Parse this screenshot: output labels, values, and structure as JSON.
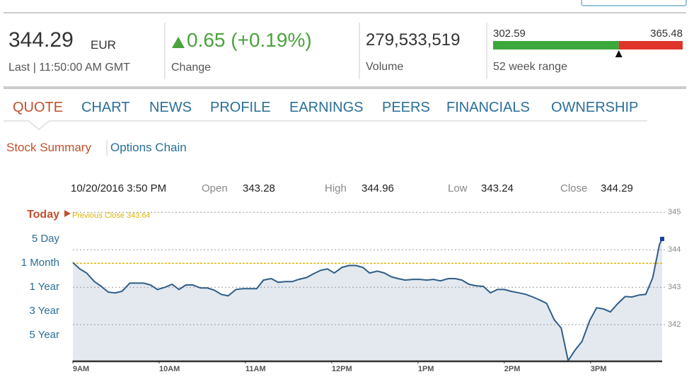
{
  "header": {
    "price": 344.29,
    "currency": "EUR",
    "last_label": "Last",
    "last_time": "11:50:00 AM GMT",
    "change": "0.65 (+0.19%)",
    "change_label": "Change",
    "volume": "279,533,519",
    "volume_label": "Volume",
    "range_low": 302.59,
    "range_high": 365.48,
    "range_label": "52 week range"
  },
  "tabs": [
    "QUOTE",
    "CHART",
    "NEWS",
    "PROFILE",
    "EARNINGS",
    "PEERS",
    "FINANCIALS",
    "OWNERSHIP"
  ],
  "subtabs": [
    "Stock Summary",
    "Options Chain"
  ],
  "quote_info": {
    "date": "10/20/2016 3:50 PM",
    "fields": [
      {
        "label": "Open",
        "value": "343.28"
      },
      {
        "label": "High",
        "value": "344.96"
      },
      {
        "label": "Low",
        "value": "343.24"
      },
      {
        "label": "Close",
        "value": "344.29"
      }
    ]
  },
  "ranges": [
    "Today",
    "5 Day",
    "1 Month",
    "1 Year",
    "3 Year",
    "5 Year"
  ],
  "chart_data": {
    "type": "line",
    "color": "#2f5d87",
    "x": [
      9.0,
      9.08,
      9.16,
      9.25,
      9.33,
      9.41,
      9.49,
      9.57,
      9.66,
      9.74,
      9.82,
      9.9,
      9.98,
      10.07,
      10.15,
      10.23,
      10.31,
      10.39,
      10.48,
      10.56,
      10.64,
      10.72,
      10.8,
      10.89,
      10.97,
      11.05,
      11.13,
      11.21,
      11.3,
      11.38,
      11.46,
      11.54,
      11.62,
      11.71,
      11.79,
      11.87,
      11.95,
      12.03,
      12.12,
      12.2,
      12.28,
      12.36,
      12.44,
      12.53,
      12.61,
      12.69,
      12.77,
      12.85,
      12.94,
      13.02,
      13.1,
      13.18,
      13.26,
      13.35,
      13.43,
      13.51,
      13.59,
      13.67,
      13.76,
      13.84,
      13.92,
      14.0,
      14.08,
      14.17,
      14.25,
      14.33,
      14.41,
      14.49,
      14.58,
      14.66,
      14.74,
      14.82,
      14.9,
      14.99,
      15.07,
      15.15,
      15.23,
      15.31,
      15.4,
      15.48,
      15.56,
      15.64,
      15.72,
      15.8,
      15.83
    ],
    "values": [
      343.66,
      343.49,
      343.38,
      343.15,
      343.02,
      342.87,
      342.85,
      342.89,
      343.11,
      343.11,
      343.11,
      343.06,
      342.94,
      343.0,
      343.08,
      342.94,
      343.06,
      343.06,
      342.98,
      342.98,
      342.92,
      342.81,
      342.77,
      342.94,
      342.96,
      342.96,
      342.96,
      343.19,
      343.23,
      343.13,
      343.15,
      343.15,
      343.21,
      343.26,
      343.36,
      343.45,
      343.49,
      343.38,
      343.53,
      343.58,
      343.58,
      343.53,
      343.38,
      343.43,
      343.38,
      343.28,
      343.23,
      343.19,
      343.21,
      343.21,
      343.19,
      343.21,
      343.17,
      343.23,
      343.23,
      343.19,
      343.08,
      343.04,
      343.02,
      342.85,
      342.94,
      342.94,
      342.89,
      342.85,
      342.81,
      342.74,
      342.66,
      342.57,
      342.13,
      341.91,
      341.04,
      341.32,
      341.55,
      342.11,
      342.45,
      342.42,
      342.34,
      342.55,
      342.75,
      342.74,
      342.79,
      342.81,
      343.25,
      344.15,
      344.29
    ],
    "xlim": [
      9,
      15.83
    ],
    "xticks": [
      {
        "value": 9,
        "label": "9AM"
      },
      {
        "value": 10,
        "label": "10AM"
      },
      {
        "value": 11,
        "label": "11AM"
      },
      {
        "value": 12,
        "label": "12PM"
      },
      {
        "value": 13,
        "label": "1PM"
      },
      {
        "value": 14,
        "label": "2PM"
      },
      {
        "value": 15,
        "label": "3PM"
      }
    ],
    "ylim": [
      341.04,
      345.1
    ],
    "yticks": [
      342,
      343,
      344,
      345
    ],
    "grid": true,
    "reference_line": {
      "label": "Previous Close 343.64",
      "value": 343.64,
      "color": "#e0b400"
    }
  }
}
